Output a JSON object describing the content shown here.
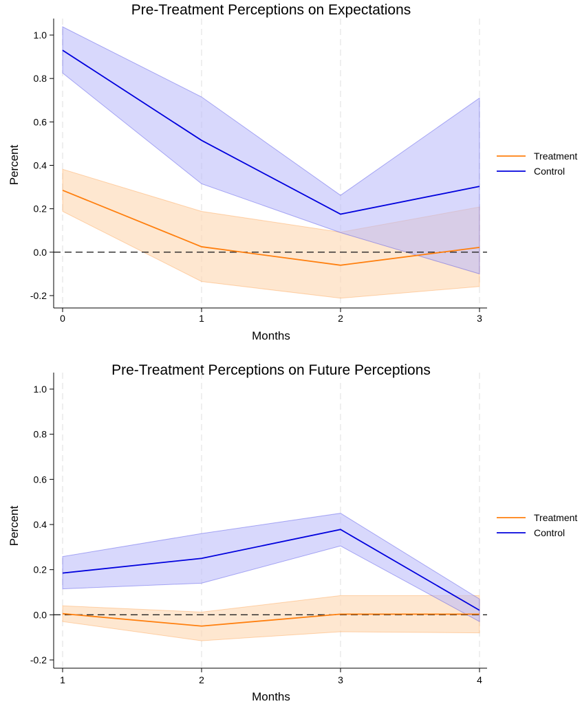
{
  "colors": {
    "treatment_line": "#ff7f0e",
    "treatment_band": "#fdd7b0",
    "control_line": "#0000dd",
    "control_band": "#b8b8fa"
  },
  "chart_data": [
    {
      "type": "line",
      "title": "Pre-Treatment Perceptions on Expectations",
      "xlabel": "Months",
      "ylabel": "Percent",
      "x": [
        0,
        1,
        2,
        3
      ],
      "x_ticks": [
        "0",
        "1",
        "2",
        "3"
      ],
      "xlim": [
        0,
        3
      ],
      "ylim": [
        -0.2,
        1.0
      ],
      "y_ticks": [
        "-0.2",
        "0.0",
        "0.2",
        "0.4",
        "0.6",
        "0.8",
        "1.0"
      ],
      "vertical_gridlines": true,
      "zero_reference_line": true,
      "legend": "right",
      "series": [
        {
          "name": "Treatment",
          "values": [
            0.285,
            0.025,
            -0.06,
            0.022
          ],
          "ci_low": [
            0.188,
            -0.135,
            -0.212,
            -0.158
          ],
          "ci_high": [
            0.382,
            0.188,
            0.092,
            0.208
          ]
        },
        {
          "name": "Control",
          "values": [
            0.93,
            0.515,
            0.175,
            0.303
          ],
          "ci_low": [
            0.825,
            0.315,
            0.09,
            -0.1
          ],
          "ci_high": [
            1.038,
            0.715,
            0.262,
            0.71
          ]
        }
      ]
    },
    {
      "type": "line",
      "title": "Pre-Treatment Perceptions on Future Perceptions",
      "xlabel": "Months",
      "ylabel": "Percent",
      "x": [
        1,
        2,
        3,
        4
      ],
      "x_ticks": [
        "1",
        "2",
        "3",
        "4"
      ],
      "xlim": [
        1,
        4
      ],
      "ylim": [
        -0.2,
        1.0
      ],
      "y_ticks": [
        "-0.2",
        "0.0",
        "0.2",
        "0.4",
        "0.6",
        "0.8",
        "1.0"
      ],
      "vertical_gridlines": true,
      "zero_reference_line": true,
      "legend": "right",
      "series": [
        {
          "name": "Treatment",
          "values": [
            0.005,
            -0.05,
            0.003,
            0.003
          ],
          "ci_low": [
            -0.03,
            -0.115,
            -0.075,
            -0.08
          ],
          "ci_high": [
            0.04,
            0.012,
            0.085,
            0.085
          ]
        },
        {
          "name": "Control",
          "values": [
            0.185,
            0.25,
            0.378,
            0.02
          ],
          "ci_low": [
            0.115,
            0.14,
            0.305,
            -0.03
          ],
          "ci_high": [
            0.258,
            0.36,
            0.45,
            0.07
          ]
        }
      ]
    }
  ]
}
